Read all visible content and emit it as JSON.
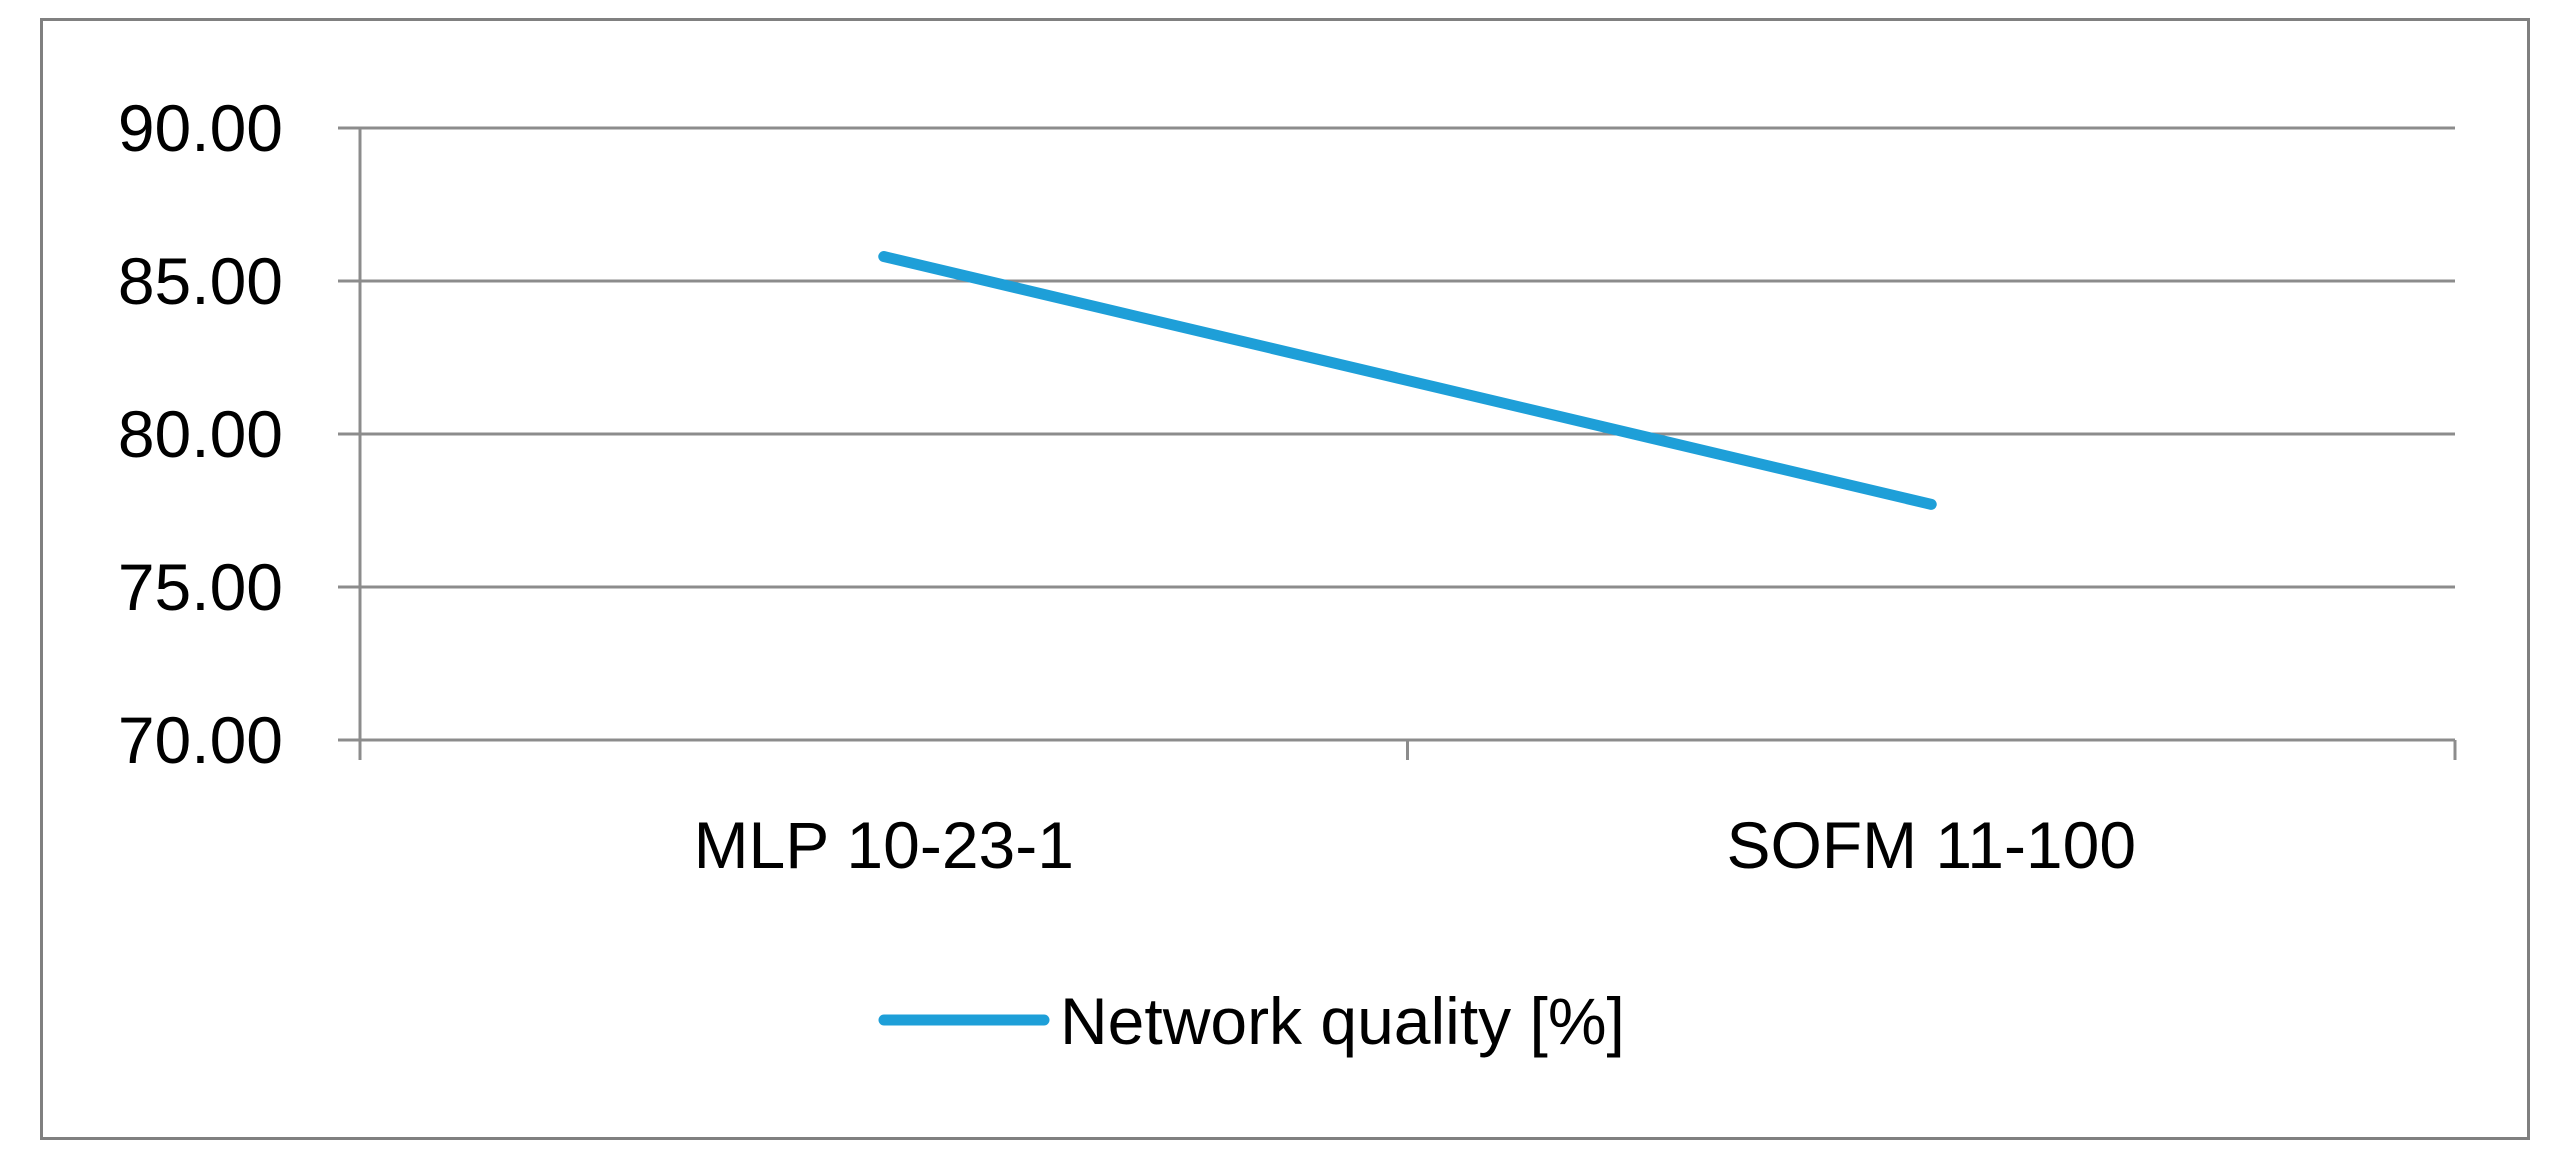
{
  "chart_data": {
    "type": "line",
    "categories": [
      "MLP 10-23-1",
      "SOFM 11-100"
    ],
    "series": [
      {
        "name": "Network quality [%]",
        "values": [
          85.8,
          77.7
        ],
        "color": "#1E9FD8"
      }
    ],
    "ylim": [
      70,
      90
    ],
    "yticks": [
      "70.00",
      "75.00",
      "80.00",
      "85.00",
      "90.00"
    ],
    "grid": true,
    "legend_position": "bottom",
    "gridline_color": "#8C8C8C",
    "border_color": "#808080"
  }
}
